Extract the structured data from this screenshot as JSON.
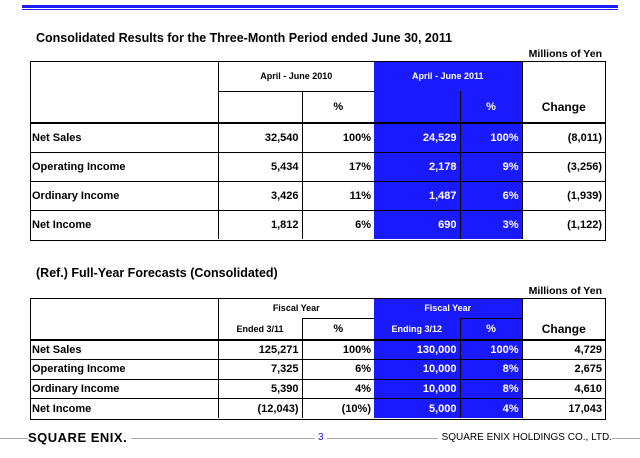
{
  "section1": {
    "title": "Consolidated Results for the Three-Month Period ended June 30, 2011",
    "units": "Millions of Yen",
    "headers": {
      "period_prev": "April - June 2010",
      "period_curr": "April - June 2011",
      "pct": "%",
      "change": "Change"
    },
    "rows": [
      {
        "label": "Net Sales",
        "prev": "32,540",
        "prev_pct": "100%",
        "curr": "24,529",
        "curr_pct": "100%",
        "change": "(8,011)"
      },
      {
        "label": "Operating Income",
        "prev": "5,434",
        "prev_pct": "17%",
        "curr": "2,178",
        "curr_pct": "9%",
        "change": "(3,256)"
      },
      {
        "label": "Ordinary Income",
        "prev": "3,426",
        "prev_pct": "11%",
        "curr": "1,487",
        "curr_pct": "6%",
        "change": "(1,939)"
      },
      {
        "label": "Net Income",
        "prev": "1,812",
        "prev_pct": "6%",
        "curr": "690",
        "curr_pct": "3%",
        "change": "(1,122)"
      }
    ]
  },
  "section2": {
    "title": "(Ref.) Full-Year Forecasts (Consolidated)",
    "units": "Millions of Yen",
    "headers": {
      "prev_line1": "Fiscal Year",
      "prev_line2": "Ended 3/11",
      "curr_line1": "Fiscal Year",
      "curr_line2": "Ending 3/12",
      "pct": "%",
      "change": "Change"
    },
    "rows": [
      {
        "label": "Net Sales",
        "prev": "125,271",
        "prev_pct": "100%",
        "curr": "130,000",
        "curr_pct": "100%",
        "change": "4,729"
      },
      {
        "label": "Operating Income",
        "prev": "7,325",
        "prev_pct": "6%",
        "curr": "10,000",
        "curr_pct": "8%",
        "change": "2,675"
      },
      {
        "label": "Ordinary Income",
        "prev": "5,390",
        "prev_pct": "4%",
        "curr": "10,000",
        "curr_pct": "8%",
        "change": "4,610"
      },
      {
        "label": "Net Income",
        "prev": "(12,043)",
        "prev_pct": "(10%)",
        "curr": "5,000",
        "curr_pct": "4%",
        "change": "17,043"
      }
    ]
  },
  "footer": {
    "logo": "SQUARE ENIX.",
    "page_number": "3",
    "company": "SQUARE ENIX HOLDINGS CO., LTD."
  },
  "colors": {
    "highlight": "#1a1aff",
    "page_number": "#1a1aff"
  }
}
